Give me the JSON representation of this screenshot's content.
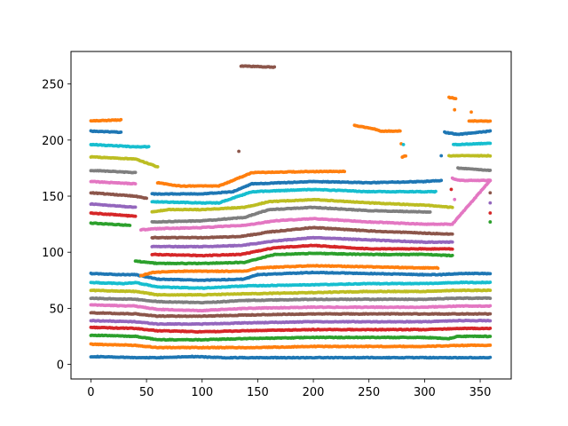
{
  "chart_data": {
    "type": "scatter",
    "title": "",
    "xlabel": "",
    "ylabel": "",
    "xlim": [
      -17.9,
      377.9
    ],
    "ylim": [
      -13.0,
      279.0
    ],
    "x_ticks": [
      0,
      50,
      100,
      150,
      200,
      250,
      300,
      350
    ],
    "y_ticks": [
      0,
      50,
      100,
      150,
      200,
      250
    ],
    "palette": [
      "#1f77b4",
      "#ff7f0e",
      "#2ca02c",
      "#d62728",
      "#9467bd",
      "#8c564b",
      "#e377c2",
      "#7f7f7f",
      "#bcbd22",
      "#17becf"
    ],
    "series": [
      {
        "color": "#1f77b4",
        "points": [
          [
            0,
            7
          ],
          [
            40,
            6
          ],
          [
            60,
            6
          ],
          [
            90,
            7
          ],
          [
            120,
            6
          ],
          [
            160,
            6
          ],
          [
            200,
            6
          ],
          [
            240,
            6
          ],
          [
            260,
            6
          ],
          [
            290,
            6
          ],
          [
            320,
            6
          ],
          [
            359,
            6
          ]
        ]
      },
      {
        "color": "#ff7f0e",
        "points": [
          [
            0,
            18
          ],
          [
            40,
            17
          ],
          [
            60,
            15
          ],
          [
            100,
            15
          ],
          [
            150,
            15
          ],
          [
            200,
            16
          ],
          [
            250,
            16
          ],
          [
            300,
            16
          ],
          [
            340,
            17
          ],
          [
            359,
            17
          ]
        ]
      },
      {
        "color": "#2ca02c",
        "points": [
          [
            0,
            26
          ],
          [
            40,
            25
          ],
          [
            60,
            22
          ],
          [
            100,
            22
          ],
          [
            140,
            23
          ],
          [
            200,
            24
          ],
          [
            250,
            24
          ],
          [
            300,
            24
          ],
          [
            322,
            23
          ],
          [
            330,
            25
          ],
          [
            359,
            25
          ]
        ]
      },
      {
        "color": "#d62728",
        "points": [
          [
            0,
            33
          ],
          [
            40,
            32
          ],
          [
            60,
            30
          ],
          [
            100,
            29
          ],
          [
            140,
            30
          ],
          [
            200,
            31
          ],
          [
            250,
            31
          ],
          [
            300,
            31
          ],
          [
            330,
            32
          ],
          [
            359,
            32
          ]
        ]
      },
      {
        "color": "#9467bd",
        "points": [
          [
            0,
            39
          ],
          [
            40,
            38
          ],
          [
            60,
            36
          ],
          [
            100,
            36
          ],
          [
            140,
            37
          ],
          [
            200,
            38
          ],
          [
            250,
            38
          ],
          [
            300,
            38
          ],
          [
            330,
            39
          ],
          [
            359,
            39
          ]
        ]
      },
      {
        "color": "#8c564b",
        "points": [
          [
            0,
            46
          ],
          [
            40,
            45
          ],
          [
            60,
            43
          ],
          [
            100,
            43
          ],
          [
            140,
            44
          ],
          [
            200,
            45
          ],
          [
            250,
            45
          ],
          [
            300,
            45
          ],
          [
            330,
            45
          ],
          [
            359,
            45
          ]
        ]
      },
      {
        "color": "#e377c2",
        "points": [
          [
            0,
            53
          ],
          [
            40,
            52
          ],
          [
            60,
            49
          ],
          [
            100,
            48
          ],
          [
            140,
            50
          ],
          [
            200,
            51
          ],
          [
            250,
            51
          ],
          [
            300,
            51
          ],
          [
            330,
            52
          ],
          [
            359,
            52
          ]
        ]
      },
      {
        "color": "#7f7f7f",
        "points": [
          [
            0,
            59
          ],
          [
            40,
            58
          ],
          [
            60,
            56
          ],
          [
            100,
            55
          ],
          [
            140,
            57
          ],
          [
            200,
            58
          ],
          [
            250,
            58
          ],
          [
            300,
            58
          ],
          [
            330,
            59
          ],
          [
            359,
            59
          ]
        ]
      },
      {
        "color": "#bcbd22",
        "points": [
          [
            0,
            66
          ],
          [
            40,
            65
          ],
          [
            60,
            62
          ],
          [
            100,
            62
          ],
          [
            140,
            63
          ],
          [
            200,
            64
          ],
          [
            250,
            65
          ],
          [
            300,
            65
          ],
          [
            330,
            66
          ],
          [
            359,
            66
          ]
        ]
      },
      {
        "color": "#17becf",
        "points": [
          [
            0,
            73
          ],
          [
            30,
            72
          ],
          [
            40,
            73
          ],
          [
            60,
            69
          ],
          [
            100,
            68
          ],
          [
            140,
            70
          ],
          [
            200,
            71
          ],
          [
            250,
            72
          ],
          [
            300,
            72
          ],
          [
            330,
            73
          ],
          [
            359,
            73
          ]
        ]
      },
      {
        "color": "#1f77b4",
        "points": [
          [
            0,
            81
          ],
          [
            30,
            80
          ],
          [
            40,
            80
          ],
          [
            60,
            76
          ],
          [
            100,
            75
          ],
          [
            138,
            76
          ],
          [
            150,
            80
          ],
          [
            200,
            82
          ],
          [
            250,
            81
          ],
          [
            300,
            80
          ],
          [
            315,
            80
          ],
          [
            330,
            81
          ],
          [
            359,
            81
          ]
        ]
      },
      {
        "color": "#ff7f0e",
        "points": [
          [
            45,
            79
          ],
          [
            55,
            82
          ],
          [
            80,
            83
          ],
          [
            100,
            83
          ],
          [
            138,
            83
          ],
          [
            150,
            86
          ],
          [
            200,
            88
          ],
          [
            250,
            87
          ],
          [
            300,
            86
          ],
          [
            312,
            86
          ]
        ]
      },
      {
        "color": "#2ca02c",
        "points": [
          [
            40,
            92
          ],
          [
            60,
            90
          ],
          [
            100,
            90
          ],
          [
            138,
            91
          ],
          [
            165,
            98
          ],
          [
            200,
            99
          ],
          [
            250,
            98
          ],
          [
            300,
            98
          ],
          [
            325,
            97
          ]
        ]
      },
      {
        "color": "#d62728",
        "points": [
          [
            55,
            98
          ],
          [
            100,
            97
          ],
          [
            135,
            98
          ],
          [
            165,
            104
          ],
          [
            200,
            106
          ],
          [
            250,
            103
          ],
          [
            300,
            103
          ],
          [
            325,
            103
          ]
        ]
      },
      {
        "color": "#9467bd",
        "points": [
          [
            55,
            105
          ],
          [
            100,
            105
          ],
          [
            135,
            106
          ],
          [
            165,
            110
          ],
          [
            200,
            113
          ],
          [
            250,
            111
          ],
          [
            300,
            109
          ],
          [
            325,
            109
          ]
        ]
      },
      {
        "color": "#8c564b",
        "points": [
          [
            55,
            113
          ],
          [
            100,
            113
          ],
          [
            135,
            114
          ],
          [
            160,
            118
          ],
          [
            200,
            122
          ],
          [
            250,
            119
          ],
          [
            300,
            117
          ],
          [
            325,
            116
          ]
        ]
      },
      {
        "color": "#e377c2",
        "points": [
          [
            45,
            120
          ],
          [
            60,
            121
          ],
          [
            100,
            122
          ],
          [
            138,
            124
          ],
          [
            165,
            128
          ],
          [
            200,
            130
          ],
          [
            250,
            127
          ],
          [
            300,
            125
          ],
          [
            325,
            125
          ],
          [
            359,
            164
          ]
        ]
      },
      {
        "color": "#7f7f7f",
        "points": [
          [
            55,
            127
          ],
          [
            100,
            128
          ],
          [
            138,
            131
          ],
          [
            160,
            138
          ],
          [
            200,
            140
          ],
          [
            250,
            137
          ],
          [
            300,
            136
          ],
          [
            305,
            136
          ]
        ]
      },
      {
        "color": "#bcbd22",
        "points": [
          [
            55,
            136
          ],
          [
            70,
            138
          ],
          [
            100,
            138
          ],
          [
            138,
            140
          ],
          [
            160,
            145
          ],
          [
            200,
            147
          ],
          [
            250,
            144
          ],
          [
            300,
            142
          ],
          [
            325,
            140
          ]
        ]
      },
      {
        "color": "#17becf",
        "points": [
          [
            55,
            145
          ],
          [
            100,
            144
          ],
          [
            115,
            144
          ],
          [
            145,
            154
          ],
          [
            200,
            156
          ],
          [
            250,
            154
          ],
          [
            300,
            154
          ],
          [
            310,
            154
          ]
        ]
      },
      {
        "color": "#1f77b4",
        "points": [
          [
            55,
            152
          ],
          [
            100,
            152
          ],
          [
            128,
            154
          ],
          [
            145,
            161
          ],
          [
            200,
            163
          ],
          [
            250,
            162
          ],
          [
            300,
            163
          ],
          [
            315,
            164
          ]
        ]
      },
      {
        "color": "#ff7f0e",
        "points": [
          [
            60,
            162
          ],
          [
            80,
            159
          ],
          [
            115,
            159
          ],
          [
            145,
            171
          ],
          [
            200,
            172
          ],
          [
            228,
            172
          ]
        ]
      },
      {
        "color": "#2ca02c",
        "points": [
          [
            0,
            126
          ],
          [
            35,
            124
          ]
        ]
      },
      {
        "color": "#d62728",
        "points": [
          [
            0,
            135
          ],
          [
            40,
            132
          ]
        ]
      },
      {
        "color": "#9467bd",
        "points": [
          [
            0,
            143
          ],
          [
            40,
            140
          ]
        ]
      },
      {
        "color": "#8c564b",
        "points": [
          [
            0,
            153
          ],
          [
            40,
            150
          ],
          [
            50,
            148
          ]
        ]
      },
      {
        "color": "#e377c2",
        "points": [
          [
            0,
            163
          ],
          [
            40,
            161
          ]
        ]
      },
      {
        "color": "#7f7f7f",
        "points": [
          [
            0,
            173
          ],
          [
            40,
            171
          ]
        ]
      },
      {
        "color": "#bcbd22",
        "points": [
          [
            0,
            185
          ],
          [
            40,
            183
          ],
          [
            55,
            178
          ],
          [
            60,
            176
          ]
        ]
      },
      {
        "color": "#17becf",
        "points": [
          [
            0,
            196
          ],
          [
            40,
            194
          ],
          [
            52,
            194
          ]
        ]
      },
      {
        "color": "#1f77b4",
        "points": [
          [
            0,
            208
          ],
          [
            27,
            207
          ]
        ]
      },
      {
        "color": "#ff7f0e",
        "points": [
          [
            0,
            217
          ],
          [
            27,
            218
          ]
        ]
      },
      {
        "color": "#8c564b",
        "points": [
          [
            135,
            266
          ],
          [
            165,
            265
          ]
        ]
      },
      {
        "color": "#ff7f0e",
        "points": [
          [
            237,
            213
          ],
          [
            255,
            210
          ],
          [
            260,
            208
          ],
          [
            278,
            208
          ],
          [
            280,
            185
          ],
          [
            283,
            186
          ]
        ]
      },
      {
        "color": "#ff7f0e",
        "points": [
          [
            322,
            238
          ],
          [
            328,
            237
          ]
        ]
      },
      {
        "color": "#1f77b4",
        "points": [
          [
            318,
            207
          ],
          [
            330,
            205
          ],
          [
            359,
            208
          ]
        ]
      },
      {
        "color": "#17becf",
        "points": [
          [
            326,
            196
          ],
          [
            359,
            197
          ]
        ]
      },
      {
        "color": "#bcbd22",
        "points": [
          [
            322,
            186
          ],
          [
            359,
            186
          ]
        ]
      },
      {
        "color": "#7f7f7f",
        "points": [
          [
            330,
            175
          ],
          [
            359,
            173
          ]
        ]
      },
      {
        "color": "#ff7f0e",
        "points": [
          [
            340,
            217
          ],
          [
            359,
            217
          ]
        ]
      },
      {
        "color": "#e377c2",
        "points": [
          [
            325,
            166
          ],
          [
            332,
            164
          ],
          [
            359,
            164
          ]
        ]
      }
    ],
    "isolated_points": [
      {
        "color": "#8c564b",
        "x": 133,
        "y": 190
      },
      {
        "color": "#17becf",
        "x": 281,
        "y": 196
      },
      {
        "color": "#1f77b4",
        "x": 315,
        "y": 186
      },
      {
        "color": "#ff7f0e",
        "x": 327,
        "y": 227
      },
      {
        "color": "#ff7f0e",
        "x": 342,
        "y": 225
      },
      {
        "color": "#d62728",
        "x": 324,
        "y": 156
      },
      {
        "color": "#e377c2",
        "x": 327,
        "y": 147
      },
      {
        "color": "#8c564b",
        "x": 359,
        "y": 153
      },
      {
        "color": "#9467bd",
        "x": 359,
        "y": 144
      },
      {
        "color": "#d62728",
        "x": 359,
        "y": 135
      },
      {
        "color": "#2ca02c",
        "x": 359,
        "y": 127
      }
    ]
  }
}
